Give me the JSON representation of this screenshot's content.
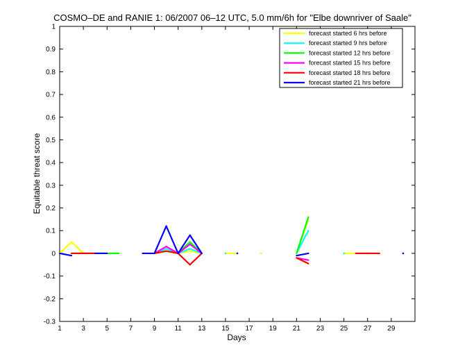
{
  "chart_data": {
    "type": "line",
    "title": "COSMO–DE and RANIE 1: 06/2007 06–12 UTC, 5.0 mm/6h for \"Elbe downriver of Saale\"",
    "xlabel": "Days",
    "ylabel": "Equitable threat score",
    "xlim": [
      1,
      31
    ],
    "ylim": [
      -0.3,
      1
    ],
    "xticks": [
      "1",
      "3",
      "5",
      "7",
      "9",
      "11",
      "13",
      "15",
      "17",
      "19",
      "21",
      "23",
      "25",
      "27",
      "29"
    ],
    "yticks": [
      "-0.3",
      "-0.2",
      "-0.1",
      "0",
      "0.1",
      "0.2",
      "0.3",
      "0.4",
      "0.5",
      "0.6",
      "0.7",
      "0.8",
      "0.9",
      "1"
    ],
    "grid": false,
    "legend_position": "top-right",
    "series": [
      {
        "name": "forecast started 6 hrs before",
        "color": "#ffff00",
        "x": [
          1,
          2,
          3,
          4,
          5,
          6,
          9,
          10,
          11,
          12,
          13,
          15,
          16,
          18,
          21,
          22,
          25,
          26,
          27,
          28,
          30
        ],
        "y": [
          0,
          0.05,
          0,
          0,
          0,
          0,
          0,
          0.01,
          0,
          0.01,
          0,
          0,
          0,
          0,
          0,
          0.15,
          0,
          0,
          0,
          0,
          0
        ]
      },
      {
        "name": "forecast started 9 hrs before",
        "color": "#00ffff",
        "x": [
          2,
          3,
          4,
          5,
          9,
          10,
          11,
          12,
          13,
          15,
          21,
          22,
          25,
          27,
          30
        ],
        "y": [
          0,
          0,
          0,
          0,
          0,
          0.02,
          0,
          0.02,
          0,
          0,
          0,
          0.1,
          0,
          0,
          0
        ]
      },
      {
        "name": "forecast started 12 hrs before",
        "color": "#00ff00",
        "x": [
          2,
          3,
          4,
          5,
          6,
          9,
          10,
          11,
          12,
          13,
          21,
          22,
          27
        ],
        "y": [
          0,
          0,
          0,
          0,
          0,
          0,
          0.01,
          0,
          0.05,
          0,
          0,
          0.16,
          0
        ]
      },
      {
        "name": "forecast started 15 hrs before",
        "color": "#ff00ff",
        "x": [
          3,
          4,
          9,
          10,
          11,
          12,
          13,
          21,
          22
        ],
        "y": [
          0,
          0,
          0,
          0.03,
          0,
          0.04,
          0,
          -0.02,
          -0.03
        ]
      },
      {
        "name": "forecast started 18 hrs before",
        "color": "#ff0000",
        "x": [
          2,
          3,
          4,
          9,
          10,
          11,
          12,
          13,
          21,
          22,
          26,
          27,
          28
        ],
        "y": [
          0,
          0,
          0,
          0,
          0.01,
          0,
          -0.05,
          0,
          -0.02,
          -0.045,
          0,
          0,
          0
        ]
      },
      {
        "name": "forecast started 21 hrs before",
        "color": "#0000ff",
        "x": [
          1,
          2,
          4,
          5,
          8,
          9,
          10,
          11,
          12,
          13,
          16,
          21,
          22,
          30
        ],
        "y": [
          0,
          -0.01,
          0,
          0,
          0,
          0,
          0.12,
          0,
          0.08,
          0,
          0,
          -0.01,
          0,
          0
        ]
      }
    ]
  }
}
